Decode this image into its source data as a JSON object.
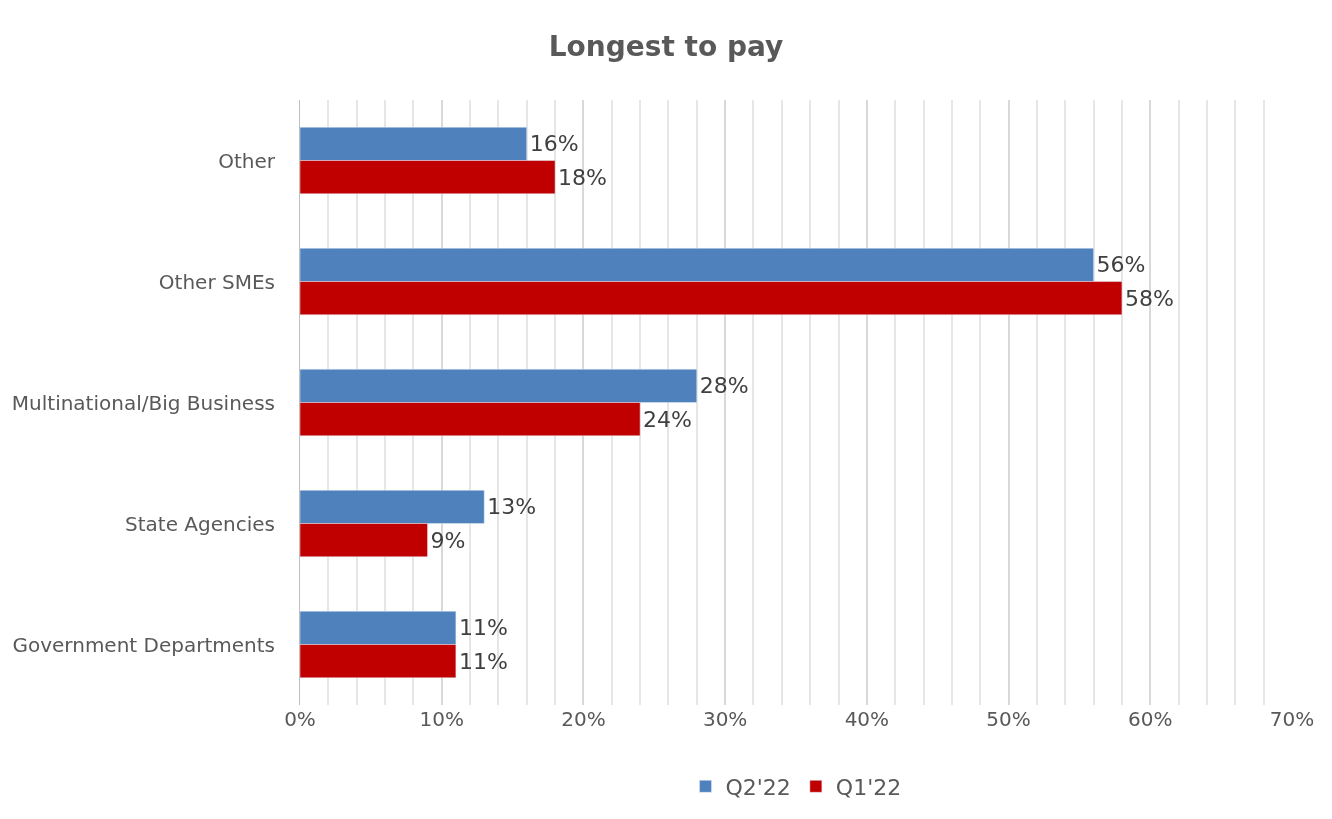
{
  "chart_data": {
    "type": "bar",
    "orientation": "horizontal",
    "title": "Longest to pay",
    "categories": [
      "Other",
      "Other SMEs",
      "Multinational/Big Business",
      "State Agencies",
      "Government Departments"
    ],
    "series": [
      {
        "name": "Q2'22",
        "color": "#4f81bd",
        "values": [
          16,
          56,
          28,
          13,
          11
        ],
        "value_labels": [
          "16%",
          "56%",
          "28%",
          "13%",
          "11%"
        ]
      },
      {
        "name": "Q1'22",
        "color": "#c00000",
        "values": [
          18,
          58,
          24,
          9,
          11
        ],
        "value_labels": [
          "18%",
          "58%",
          "24%",
          "9%",
          "11%"
        ]
      }
    ],
    "xlim": [
      0,
      70
    ],
    "xticks": [
      {
        "value": 0,
        "label": "0%"
      },
      {
        "value": 10,
        "label": "10%"
      },
      {
        "value": 20,
        "label": "20%"
      },
      {
        "value": 30,
        "label": "30%"
      },
      {
        "value": 40,
        "label": "40%"
      },
      {
        "value": 50,
        "label": "50%"
      },
      {
        "value": 60,
        "label": "60%"
      },
      {
        "value": 70,
        "label": "70%"
      }
    ],
    "grid": "x",
    "legend": "bottom"
  }
}
